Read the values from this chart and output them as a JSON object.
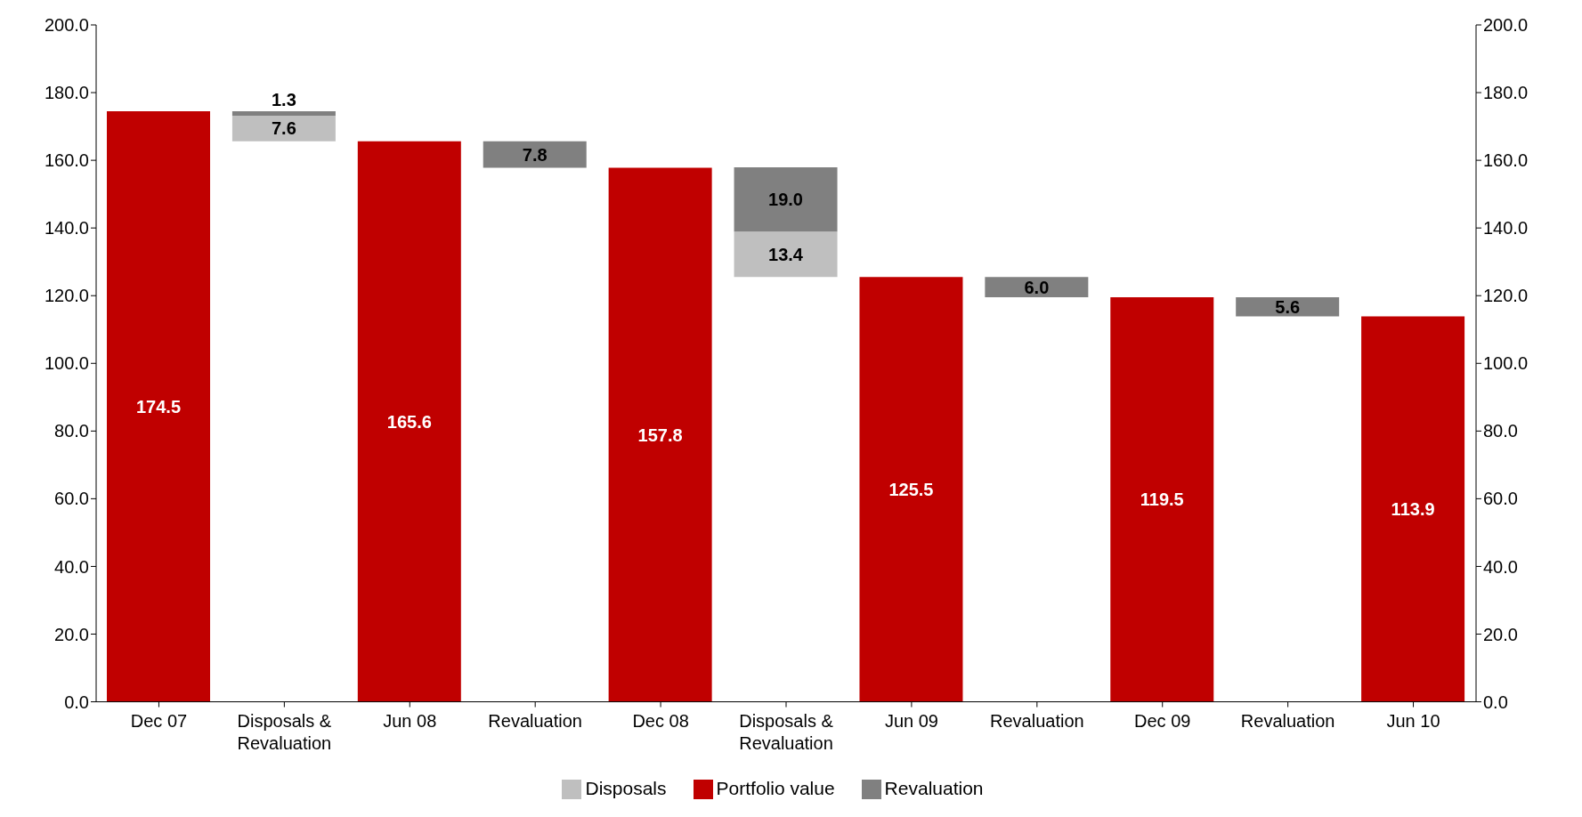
{
  "chart_data": {
    "type": "bar",
    "categories": [
      "Dec 07",
      "Disposals & Revaluation",
      "Jun 08",
      "Revaluation",
      "Dec 08",
      "Disposals & Revaluation",
      "Jun 09",
      "Revaluation",
      "Dec 09",
      "Revaluation",
      "Jun 10"
    ],
    "series": [
      {
        "name": "Portfolio value",
        "color": "#c00000",
        "values": [
          174.5,
          null,
          165.6,
          null,
          157.8,
          null,
          125.5,
          null,
          119.5,
          null,
          113.9
        ],
        "value_labels": [
          "174.5",
          null,
          "165.6",
          null,
          "157.8",
          null,
          "125.5",
          null,
          "119.5",
          null,
          "113.9"
        ]
      },
      {
        "name": "Disposals",
        "color": "#bfbfbf",
        "base": [
          null,
          165.6,
          null,
          null,
          null,
          125.5,
          null,
          null,
          null,
          null,
          null
        ],
        "values": [
          null,
          7.6,
          null,
          null,
          null,
          13.4,
          null,
          null,
          null,
          null,
          null
        ],
        "value_labels": [
          null,
          "7.6",
          null,
          null,
          null,
          "13.4",
          null,
          null,
          null,
          null,
          null
        ]
      },
      {
        "name": "Revaluation",
        "color": "#808080",
        "base": [
          null,
          173.2,
          null,
          157.8,
          null,
          138.9,
          null,
          119.5,
          null,
          113.9,
          null
        ],
        "values": [
          null,
          1.3,
          null,
          7.8,
          null,
          19.0,
          null,
          6.0,
          null,
          5.6,
          null
        ],
        "value_labels": [
          null,
          "1.3",
          null,
          "7.8",
          null,
          "19.0",
          null,
          "6.0",
          null,
          "5.6",
          null
        ]
      }
    ],
    "ylim": [
      0,
      200
    ],
    "yticks": [
      {
        "value": 0,
        "label": "0.0"
      },
      {
        "value": 20,
        "label": "20.0"
      },
      {
        "value": 40,
        "label": "40.0"
      },
      {
        "value": 60,
        "label": "60.0"
      },
      {
        "value": 80,
        "label": "80.0"
      },
      {
        "value": 100,
        "label": "100.0"
      },
      {
        "value": 120,
        "label": "120.0"
      },
      {
        "value": 140,
        "label": "140.0"
      },
      {
        "value": 160,
        "label": "160.0"
      },
      {
        "value": 180,
        "label": "180.0"
      },
      {
        "value": 200,
        "label": "200.0"
      }
    ],
    "y2lim": [
      0,
      200
    ],
    "y2ticks": [
      {
        "value": 0,
        "label": "0.0"
      },
      {
        "value": 20,
        "label": "20.0"
      },
      {
        "value": 40,
        "label": "40.0"
      },
      {
        "value": 60,
        "label": "60.0"
      },
      {
        "value": 80,
        "label": "80.0"
      },
      {
        "value": 100,
        "label": "100.0"
      },
      {
        "value": 120,
        "label": "120.0"
      },
      {
        "value": 140,
        "label": "140.0"
      },
      {
        "value": 160,
        "label": "160.0"
      },
      {
        "value": 180,
        "label": "180.0"
      },
      {
        "value": 200,
        "label": "200.0"
      }
    ],
    "grid": false,
    "legend": "bottom"
  }
}
